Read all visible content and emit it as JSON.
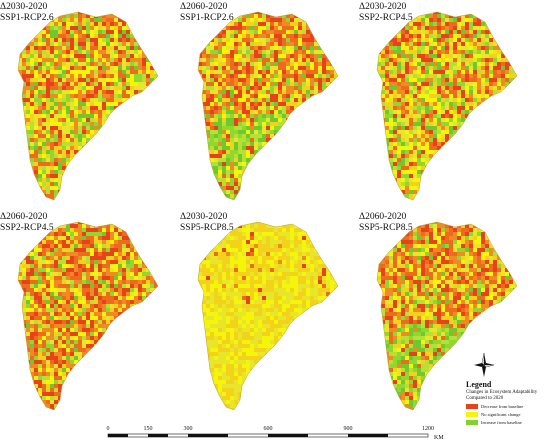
{
  "panels": [
    {
      "id": "p1",
      "title1": "Δ2030-2020",
      "title2": "SSP1-RCP2.6",
      "scheme": "mixed"
    },
    {
      "id": "p2",
      "title1": "Δ2060-2020",
      "title2": "SSP1-RCP2.6",
      "scheme": "greensouth"
    },
    {
      "id": "p3",
      "title1": "Δ2030-2020",
      "title2": "SSP2-RCP4.5",
      "scheme": "mixed"
    },
    {
      "id": "p4",
      "title1": "Δ2060-2020",
      "title2": "SSP2-RCP4.5",
      "scheme": "redheavy"
    },
    {
      "id": "p5",
      "title1": "Δ2030-2020",
      "title2": "SSP5-RCP8.5",
      "scheme": "yellow"
    },
    {
      "id": "p6",
      "title1": "Δ2060-2020",
      "title2": "SSP5-RCP8.5",
      "scheme": "greensouth"
    }
  ],
  "legend": {
    "title": "Legend",
    "subtitle_line1": "Changes in Ecosystem Adaptability",
    "subtitle_line2": "Compared to 2020",
    "items": [
      {
        "label": "Decrease from baseline",
        "color": "#e8421c"
      },
      {
        "label": "No significant change",
        "color": "#f5f50a"
      },
      {
        "label": "Increase from baseline",
        "color": "#7fd32b"
      }
    ]
  },
  "scale": {
    "ticks": [
      "0",
      "150",
      "300",
      "600",
      "900",
      "1200"
    ],
    "unit": "KM"
  },
  "compass": {
    "icon": "north-arrow-compass-icon"
  }
}
